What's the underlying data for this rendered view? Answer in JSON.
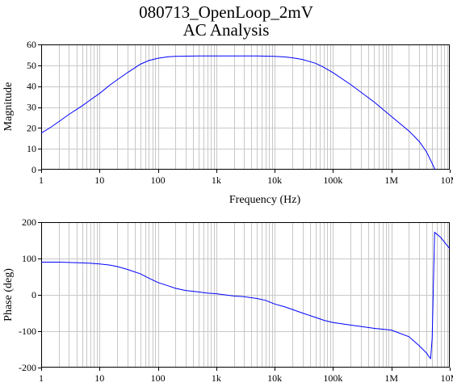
{
  "title": "080713_OpenLoop_2mV",
  "subtitle": "AC Analysis",
  "colors": {
    "trace": "#0000ff",
    "grid": "#c8c8c8",
    "frame": "#000000"
  },
  "chart_data": [
    {
      "type": "line",
      "ylabel": "Magnitude",
      "xlabel": "Frequency (Hz)",
      "xscale": "log",
      "xlim": [
        1,
        10000000
      ],
      "ylim": [
        0,
        60
      ],
      "grid": true,
      "x_tick_labels": [
        "1",
        "10",
        "100",
        "1k",
        "10k",
        "100k",
        "1M",
        "10M"
      ],
      "y_tick_labels": [
        "0",
        "10",
        "20",
        "30",
        "40",
        "50",
        "60"
      ],
      "y_ticks": [
        0,
        10,
        20,
        30,
        40,
        50,
        60
      ],
      "series": [
        {
          "x": [
            1,
            1.5,
            2,
            3,
            5,
            7,
            10,
            15,
            20,
            30,
            50,
            70,
            100,
            150,
            200,
            300,
            500,
            700,
            1000,
            2000,
            5000,
            10000,
            15000,
            20000,
            30000,
            50000,
            70000,
            100000,
            200000,
            500000,
            1000000,
            2000000,
            3000000,
            4000000,
            5000000,
            5600000
          ],
          "y": [
            17.5,
            20.5,
            23,
            26.5,
            30.5,
            33.5,
            36.5,
            40.5,
            43,
            46.5,
            50.5,
            52.3,
            53.4,
            54.1,
            54.3,
            54.4,
            54.5,
            54.5,
            54.5,
            54.5,
            54.5,
            54.3,
            54.0,
            53.6,
            52.8,
            51.0,
            49.0,
            46.5,
            40.8,
            32.5,
            25.5,
            18.5,
            13.5,
            8.5,
            3.0,
            0
          ]
        }
      ]
    },
    {
      "type": "line",
      "ylabel": "Phase (deg)",
      "xlabel": "",
      "xscale": "log",
      "xlim": [
        1,
        10000000
      ],
      "ylim": [
        -200,
        200
      ],
      "grid": true,
      "x_tick_labels": [
        "1",
        "10",
        "100",
        "1k",
        "10k",
        "100k",
        "1M",
        "10M"
      ],
      "y_tick_labels": [
        "-200",
        "-100",
        "0",
        "100",
        "200"
      ],
      "y_ticks": [
        -200,
        -100,
        0,
        100,
        200
      ],
      "series": [
        {
          "x": [
            1,
            2,
            3,
            5,
            7,
            10,
            15,
            20,
            30,
            50,
            70,
            100,
            150,
            200,
            300,
            500,
            700,
            1000,
            2000,
            3000,
            5000,
            7000,
            10000,
            15000,
            20000,
            30000,
            50000,
            70000,
            100000,
            200000,
            300000,
            500000,
            1000000,
            2000000,
            3000000,
            4000000,
            4500000,
            4700000,
            5000000,
            5500000,
            7000000,
            10000000
          ],
          "y": [
            90,
            90,
            89,
            88,
            87,
            85,
            82,
            78,
            70,
            58,
            46,
            34,
            25,
            18,
            12,
            8,
            5,
            3,
            -3,
            -5,
            -10,
            -15,
            -25,
            -33,
            -40,
            -50,
            -62,
            -70,
            -76,
            -83,
            -87,
            -92,
            -97,
            -115,
            -140,
            -160,
            -172,
            -175,
            -120,
            172,
            158,
            127
          ]
        }
      ]
    }
  ]
}
